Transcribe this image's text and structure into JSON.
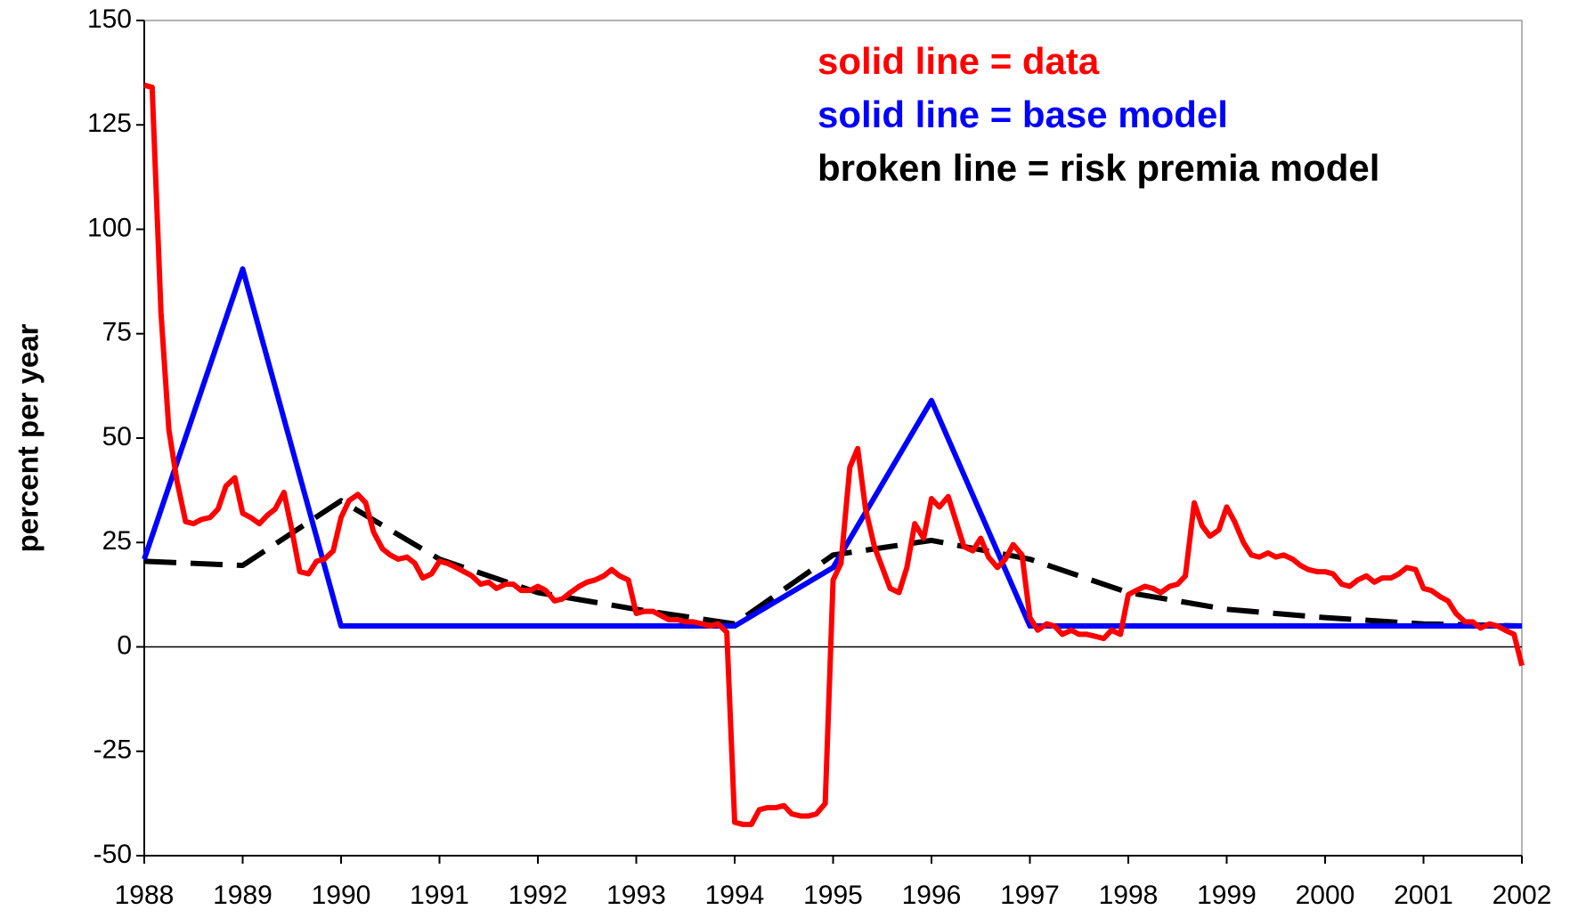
{
  "chart_data": {
    "type": "line",
    "y_label": "percent per year",
    "annotations": [
      {
        "text": "solid line = data",
        "color": "#ff0000"
      },
      {
        "text": "solid line = base model",
        "color": "#0000ff"
      },
      {
        "text": "broken line = risk premia model",
        "color": "#000000"
      }
    ],
    "xlim": [
      1988,
      2002
    ],
    "xticks": [
      1988,
      1989,
      1990,
      1991,
      1992,
      1993,
      1994,
      1995,
      1996,
      1997,
      1998,
      1999,
      2000,
      2001,
      2002
    ],
    "ylim": [
      -50,
      150
    ],
    "yticks": [
      -50,
      -25,
      0,
      25,
      50,
      75,
      100,
      125,
      150
    ],
    "grid": false,
    "series": [
      {
        "color": "#ff0000",
        "style": "solid",
        "x": [
          1988.0,
          1988.08,
          1988.17,
          1988.25,
          1988.33,
          1988.42,
          1988.5,
          1988.58,
          1988.67,
          1988.75,
          1988.83,
          1988.92,
          1989.0,
          1989.08,
          1989.17,
          1989.25,
          1989.33,
          1989.42,
          1989.5,
          1989.58,
          1989.67,
          1989.75,
          1989.83,
          1989.92,
          1990.0,
          1990.08,
          1990.17,
          1990.25,
          1990.33,
          1990.42,
          1990.5,
          1990.58,
          1990.67,
          1990.75,
          1990.83,
          1990.92,
          1991.0,
          1991.08,
          1991.17,
          1991.25,
          1991.33,
          1991.42,
          1991.5,
          1991.58,
          1991.67,
          1991.75,
          1991.83,
          1991.92,
          1992.0,
          1992.08,
          1992.17,
          1992.25,
          1992.33,
          1992.42,
          1992.5,
          1992.58,
          1992.67,
          1992.75,
          1992.83,
          1992.92,
          1993.0,
          1993.08,
          1993.17,
          1993.25,
          1993.33,
          1993.42,
          1993.5,
          1993.58,
          1993.67,
          1993.75,
          1993.83,
          1993.92,
          1994.0,
          1994.08,
          1994.17,
          1994.25,
          1994.33,
          1994.42,
          1994.5,
          1994.58,
          1994.67,
          1994.75,
          1994.83,
          1994.92,
          1995.0,
          1995.08,
          1995.17,
          1995.25,
          1995.33,
          1995.42,
          1995.5,
          1995.58,
          1995.67,
          1995.75,
          1995.83,
          1995.92,
          1996.0,
          1996.08,
          1996.17,
          1996.25,
          1996.33,
          1996.42,
          1996.5,
          1996.58,
          1996.67,
          1996.75,
          1996.83,
          1996.92,
          1997.0,
          1997.08,
          1997.17,
          1997.25,
          1997.33,
          1997.42,
          1997.5,
          1997.58,
          1997.67,
          1997.75,
          1997.83,
          1997.92,
          1998.0,
          1998.08,
          1998.17,
          1998.25,
          1998.33,
          1998.42,
          1998.5,
          1998.58,
          1998.67,
          1998.75,
          1998.83,
          1998.92,
          1999.0,
          1999.08,
          1999.17,
          1999.25,
          1999.33,
          1999.42,
          1999.5,
          1999.58,
          1999.67,
          1999.75,
          1999.83,
          1999.92,
          2000.0,
          2000.08,
          2000.17,
          2000.25,
          2000.33,
          2000.42,
          2000.5,
          2000.58,
          2000.67,
          2000.75,
          2000.83,
          2000.92,
          2001.0,
          2001.08,
          2001.17,
          2001.25,
          2001.33,
          2001.42,
          2001.5,
          2001.58,
          2001.67,
          2001.75,
          2001.83,
          2001.92,
          2002.0
        ],
        "values": [
          134.5,
          134,
          80,
          52,
          40,
          30,
          29.5,
          30.5,
          31,
          33,
          38.5,
          40.5,
          32,
          31,
          29.5,
          31.5,
          33,
          37,
          28,
          18,
          17.5,
          20.5,
          21,
          23,
          31,
          35,
          36.5,
          34.5,
          27.5,
          23.5,
          22,
          21,
          21.5,
          20,
          16.5,
          17.5,
          20.5,
          20,
          19,
          18,
          17,
          15,
          15.5,
          14,
          15,
          15,
          13.5,
          13.5,
          14.5,
          13.5,
          11,
          11.5,
          13,
          14.5,
          15.5,
          16,
          17,
          18.5,
          17,
          16,
          8,
          8.5,
          8.5,
          7.5,
          6.5,
          6.5,
          6,
          6,
          5.5,
          5,
          5.5,
          3.5,
          -42,
          -42.5,
          -42.5,
          -39,
          -38.5,
          -38.5,
          -38,
          -40,
          -40.5,
          -40.5,
          -40,
          -37.5,
          16,
          20,
          43,
          47.5,
          33,
          24,
          19,
          14,
          13,
          19,
          29.5,
          26,
          35.5,
          33.5,
          36,
          30,
          24,
          23,
          26,
          21.5,
          19,
          21,
          24.5,
          22,
          7,
          4,
          5.5,
          5,
          3,
          4,
          3,
          3,
          2.5,
          2,
          4,
          3,
          12.5,
          13.5,
          14.5,
          14,
          13,
          14.5,
          15,
          17,
          34.5,
          29,
          26.5,
          28,
          33.5,
          30,
          25,
          22,
          21.5,
          22.5,
          21.5,
          22,
          21,
          19.5,
          18.5,
          18,
          18,
          17.5,
          15,
          14.5,
          16,
          17,
          15.5,
          16.5,
          16.5,
          17.5,
          19,
          18.5,
          14,
          13.5,
          12,
          11,
          8,
          6,
          6,
          4.5,
          5.5,
          5,
          4,
          3,
          -4.5
        ]
      },
      {
        "color": "#0000ff",
        "style": "solid",
        "x": [
          1988,
          1989,
          1990,
          1994,
          1995,
          1996,
          1997,
          2002
        ],
        "values": [
          21,
          90.5,
          5,
          5,
          19,
          59,
          5,
          5
        ]
      },
      {
        "color": "#000000",
        "style": "dashed",
        "x": [
          1988,
          1989,
          1990,
          1991,
          1992,
          1993,
          1994,
          1995,
          1996,
          1997,
          1998,
          1999,
          2000,
          2001,
          2002
        ],
        "values": [
          20.5,
          19.5,
          35,
          21,
          13,
          9,
          5.5,
          22,
          25.5,
          21,
          13,
          9,
          7,
          5.5,
          5
        ]
      }
    ]
  }
}
